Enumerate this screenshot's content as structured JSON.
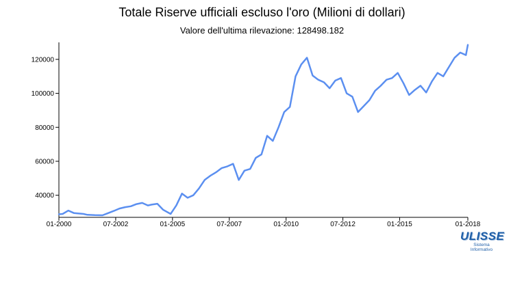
{
  "chart_data": {
    "type": "line",
    "title": "Totale Riserve ufficiali escluso l'oro (Milioni di dollari)",
    "subtitle": "Valore dell'ultima rilevazione: 128498.182",
    "xlabel": "",
    "ylabel": "",
    "ylim": [
      27000,
      130000
    ],
    "y_ticks": [
      40000,
      60000,
      80000,
      100000,
      120000
    ],
    "x_ticks": [
      "01-2000",
      "07-2002",
      "01-2005",
      "07-2007",
      "01-2010",
      "07-2012",
      "01-2015",
      "01-2018"
    ],
    "x_range": [
      "2000-01",
      "2018-01"
    ],
    "grid": false,
    "color": "#5b8ff0",
    "series": [
      {
        "x": [
          "2000-01",
          "2000-03",
          "2000-06",
          "2000-09",
          "2000-12",
          "2001-02",
          "2001-04",
          "2001-08",
          "2001-12",
          "2002-03",
          "2002-06",
          "2002-09",
          "2002-12",
          "2003-03",
          "2003-06",
          "2003-09",
          "2003-12",
          "2004-02",
          "2004-05",
          "2004-08",
          "2004-12",
          "2005-03",
          "2005-06",
          "2005-09",
          "2005-12",
          "2006-03",
          "2006-06",
          "2006-09",
          "2006-12",
          "2007-03",
          "2007-06",
          "2007-09",
          "2007-12",
          "2008-03",
          "2008-06",
          "2008-09",
          "2008-12",
          "2009-03",
          "2009-06",
          "2009-09",
          "2009-12",
          "2010-03",
          "2010-06",
          "2010-09",
          "2010-12",
          "2011-03",
          "2011-06",
          "2011-09",
          "2011-12",
          "2012-03",
          "2012-06",
          "2012-09",
          "2012-12",
          "2013-03",
          "2013-06",
          "2013-09",
          "2013-12",
          "2014-03",
          "2014-06",
          "2014-09",
          "2014-12",
          "2015-03",
          "2015-06",
          "2015-09",
          "2015-12",
          "2016-03",
          "2016-06",
          "2016-09",
          "2016-12",
          "2017-03",
          "2017-06",
          "2017-09",
          "2017-12",
          "2018-01"
        ],
        "y": [
          28800,
          29000,
          31000,
          29500,
          29200,
          29000,
          28500,
          28300,
          28200,
          29500,
          30800,
          32200,
          33000,
          33500,
          34800,
          35500,
          34000,
          34500,
          35000,
          31500,
          29000,
          34000,
          41000,
          38500,
          40000,
          44000,
          49000,
          51500,
          53500,
          56000,
          57000,
          58500,
          49000,
          54500,
          55500,
          62000,
          64000,
          75000,
          72000,
          80000,
          89000,
          92000,
          110000,
          117000,
          121000,
          110500,
          108000,
          106500,
          103000,
          107500,
          109000,
          100000,
          98000,
          89000,
          92500,
          96000,
          101500,
          104500,
          108000,
          109000,
          112000,
          106000,
          99000,
          102000,
          104500,
          100500,
          107000,
          112000,
          110000,
          115500,
          121000,
          124000,
          122500,
          128498.182
        ]
      }
    ]
  }
}
